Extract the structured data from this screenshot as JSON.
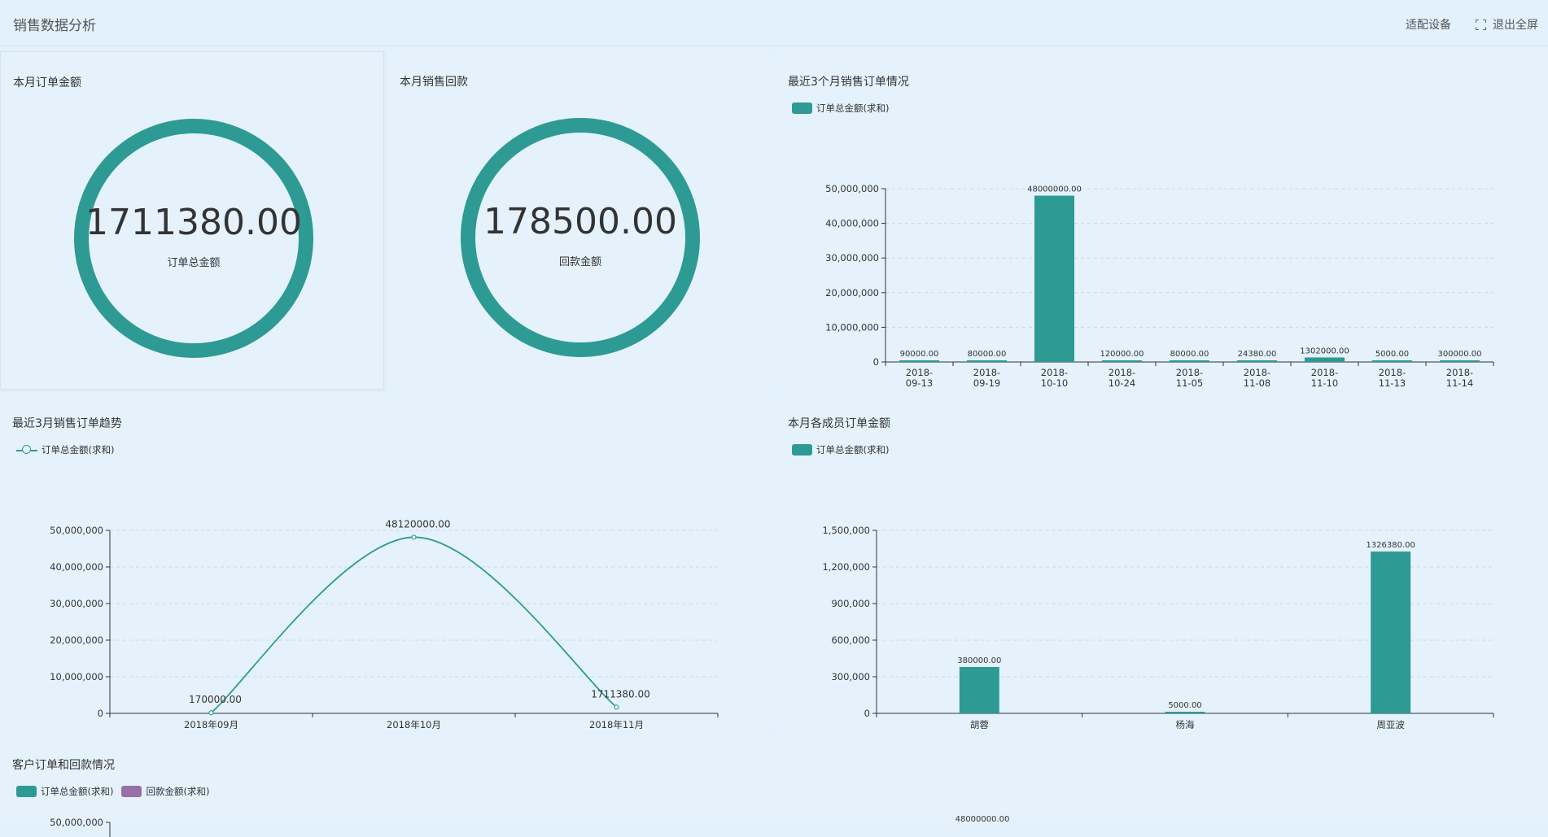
{
  "header": {
    "title": "销售数据分析",
    "fit_device_label": "适配设备",
    "exit_fullscreen_label": "退出全屏"
  },
  "colors": {
    "teal": "#2e9a94",
    "purple": "#9a6fa5"
  },
  "order_amount_card": {
    "title": "本月订单金额",
    "value": "1711380.00",
    "label": "订单总金额"
  },
  "payment_card": {
    "title": "本月销售回款",
    "value": "178500.00",
    "label": "回款金额"
  },
  "chart_data": [
    {
      "id": "orders_3m",
      "type": "bar",
      "title": "最近3个月销售订单情况",
      "legend": [
        "订单总金额(求和)"
      ],
      "categories": [
        "2018-09-13",
        "2018-09-19",
        "2018-10-10",
        "2018-10-24",
        "2018-11-05",
        "2018-11-08",
        "2018-11-10",
        "2018-11-13",
        "2018-11-14"
      ],
      "values": [
        90000,
        80000,
        48000000,
        120000,
        80000,
        24380,
        1302000,
        5000,
        300000
      ],
      "value_labels": [
        "90000.00",
        "80000.00",
        "48000000.00",
        "120000.00",
        "80000.00",
        "24380.00",
        "1302000.00",
        "5000.00",
        "300000.00"
      ],
      "yticks": [
        "0",
        "10,000,000",
        "20,000,000",
        "30,000,000",
        "40,000,000",
        "50,000,000"
      ],
      "ylim": [
        0,
        50000000
      ]
    },
    {
      "id": "trend_3m",
      "type": "line",
      "title": "最近3月销售订单趋势",
      "legend": [
        "订单总金额(求和)"
      ],
      "categories": [
        "2018年09月",
        "2018年10月",
        "2018年11月"
      ],
      "values": [
        170000,
        48120000,
        1711380
      ],
      "value_labels": [
        "170000.00",
        "48120000.00",
        "1711380.00"
      ],
      "yticks": [
        "0",
        "10,000,000",
        "20,000,000",
        "30,000,000",
        "40,000,000",
        "50,000,000"
      ],
      "ylim": [
        0,
        50000000
      ]
    },
    {
      "id": "members",
      "type": "bar",
      "title": "本月各成员订单金额",
      "legend": [
        "订单总金额(求和)"
      ],
      "categories": [
        "胡蓉",
        "杨海",
        "周亚波"
      ],
      "values": [
        380000,
        5000,
        1326380
      ],
      "value_labels": [
        "380000.00",
        "5000.00",
        "1326380.00"
      ],
      "yticks": [
        "0",
        "300,000",
        "600,000",
        "900,000",
        "1,200,000",
        "1,500,000"
      ],
      "ylim": [
        0,
        1500000
      ]
    },
    {
      "id": "customers",
      "type": "bar",
      "title": "客户订单和回款情况",
      "legend": [
        "订单总金额(求和)",
        "回款金额(求和)"
      ],
      "yticks_visible": [
        "50,000,000"
      ],
      "value_labels_visible": [
        "48000000.00"
      ],
      "ylim": [
        0,
        50000000
      ]
    }
  ]
}
